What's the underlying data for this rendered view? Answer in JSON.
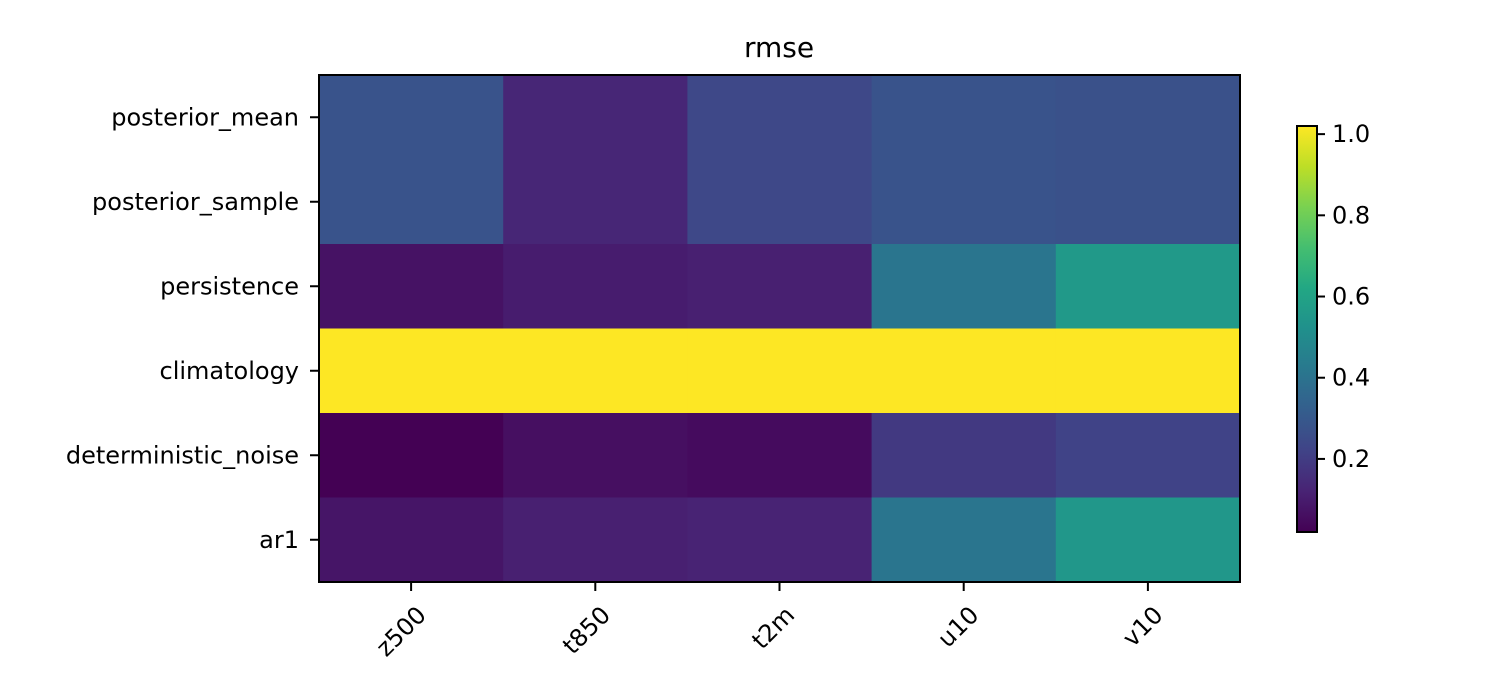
{
  "chart_data": {
    "type": "heatmap",
    "title": "rmse",
    "x_categories": [
      "z500",
      "t850",
      "t2m",
      "u10",
      "v10"
    ],
    "y_categories": [
      "posterior_mean",
      "posterior_sample",
      "persistence",
      "climatology",
      "deterministic_noise",
      "ar1"
    ],
    "values": [
      [
        0.28,
        0.13,
        0.24,
        0.28,
        0.27
      ],
      [
        0.28,
        0.13,
        0.24,
        0.28,
        0.27
      ],
      [
        0.07,
        0.1,
        0.11,
        0.41,
        0.56
      ],
      [
        1.02,
        1.02,
        1.02,
        1.02,
        1.02
      ],
      [
        0.02,
        0.06,
        0.05,
        0.19,
        0.22
      ],
      [
        0.08,
        0.11,
        0.12,
        0.41,
        0.55
      ]
    ],
    "colorbar": {
      "colormap": "viridis",
      "range": [
        0.02,
        1.02
      ],
      "ticks": [
        0.2,
        0.4,
        0.6,
        0.8,
        1.0
      ],
      "tick_labels": [
        "0.2",
        "0.4",
        "0.6",
        "0.8",
        "1.0"
      ]
    },
    "xlabel": "",
    "ylabel": ""
  }
}
